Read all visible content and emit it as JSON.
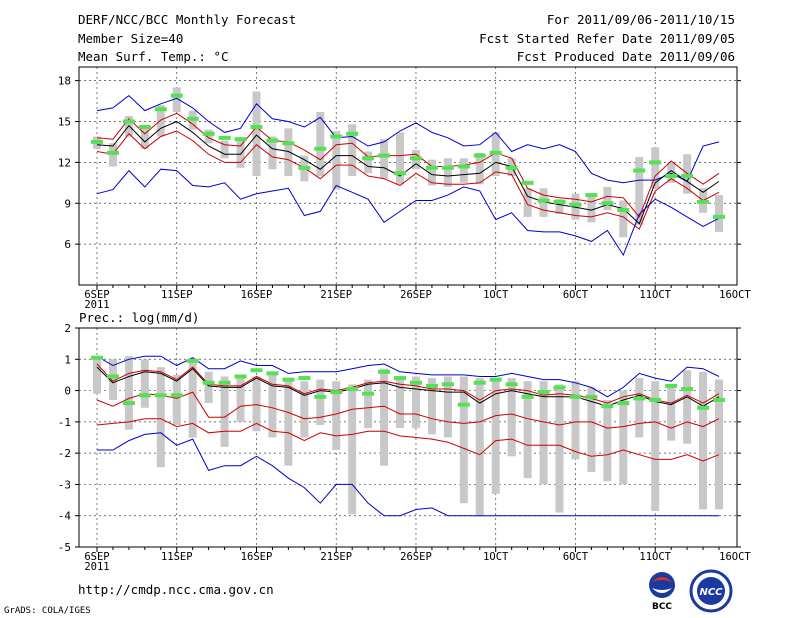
{
  "header": {
    "title": "DERF/NCC/BCC Monthly Forecast",
    "member_size": "Member Size=40",
    "variable": "Mean Surf. Temp.: °C",
    "period": "For 2011/09/06-2011/10/15",
    "fcst_started": "Fcst Started Refer Date 2011/09/05",
    "fcst_produced": "Fcst Produced Date 2011/09/06"
  },
  "footer": {
    "url": "http://cmdp.ncc.cma.gov.cn",
    "grads": "GrADS: COLA/IGES"
  },
  "logos": {
    "left": "BCC",
    "right": "NCC"
  },
  "colors": {
    "envelope": "#0000cc",
    "spread": "#cc0000",
    "mean": "#000000",
    "analog": "#55e055",
    "bar": "#c8c8c8",
    "grid": "#444444"
  },
  "chart_data": [
    {
      "type": "line",
      "title": "Mean Surf. Temp.: °C",
      "xlabel": "",
      "ylabel": "",
      "x_tick_labels": [
        "6SEP\n2011",
        "11SEP",
        "16SEP",
        "21SEP",
        "26SEP",
        "1OCT",
        "6OCT",
        "11OCT",
        "16OCT"
      ],
      "x_range": [
        1,
        40
      ],
      "ylim": [
        3,
        19
      ],
      "yticks": [
        6,
        9,
        12,
        15,
        18
      ],
      "grid": true,
      "series": [
        {
          "name": "max",
          "color": "blue",
          "values": [
            15.8,
            16.0,
            16.9,
            15.8,
            16.3,
            16.7,
            16.0,
            15.0,
            14.2,
            14.5,
            16.3,
            15.2,
            15.0,
            14.6,
            15.3,
            13.8,
            13.9,
            13.2,
            13.5,
            14.3,
            14.9,
            14.2,
            13.8,
            13.2,
            13.3,
            14.2,
            12.8,
            13.3,
            13.0,
            13.3,
            12.8,
            11.2,
            10.7,
            10.5,
            10.7,
            10.7,
            11.2,
            10.6,
            13.2,
            13.5
          ]
        },
        {
          "name": "upper",
          "color": "red",
          "values": [
            13.8,
            13.7,
            15.2,
            14.1,
            15.1,
            15.6,
            14.8,
            13.8,
            13.3,
            13.2,
            14.6,
            13.6,
            13.5,
            12.9,
            12.2,
            13.3,
            13.4,
            12.4,
            12.5,
            12.5,
            12.6,
            11.7,
            11.7,
            11.8,
            12.0,
            12.7,
            12.3,
            10.1,
            9.6,
            9.4,
            9.3,
            9.1,
            9.5,
            9.4,
            8.0,
            11.0,
            12.1,
            11.2,
            10.4,
            11.2
          ]
        },
        {
          "name": "mean",
          "color": "black",
          "values": [
            13.3,
            13.2,
            14.7,
            13.5,
            14.5,
            15.0,
            14.2,
            13.2,
            12.6,
            12.6,
            14.0,
            13.0,
            12.8,
            12.2,
            11.5,
            12.5,
            12.5,
            11.7,
            11.6,
            11.0,
            11.9,
            11.1,
            11.0,
            11.1,
            11.2,
            12.0,
            11.7,
            9.5,
            9.1,
            8.9,
            8.7,
            8.5,
            8.9,
            8.6,
            7.5,
            10.5,
            11.4,
            10.6,
            9.8,
            10.6
          ]
        },
        {
          "name": "lower",
          "color": "red",
          "values": [
            12.8,
            12.6,
            14.1,
            13.0,
            13.9,
            14.3,
            13.6,
            12.6,
            12.0,
            12.0,
            13.3,
            12.4,
            12.2,
            11.6,
            10.8,
            11.8,
            11.8,
            11.0,
            10.8,
            10.3,
            11.2,
            10.5,
            10.4,
            10.4,
            10.5,
            11.3,
            11.1,
            8.9,
            8.5,
            8.3,
            8.1,
            8.0,
            8.3,
            8.0,
            7.1,
            9.9,
            10.8,
            10.1,
            9.2,
            9.8
          ]
        },
        {
          "name": "min",
          "color": "blue",
          "values": [
            9.7,
            10.0,
            11.4,
            10.2,
            11.5,
            11.4,
            10.3,
            10.2,
            10.5,
            9.3,
            9.7,
            9.9,
            10.1,
            8.1,
            8.4,
            10.3,
            9.8,
            9.3,
            7.6,
            8.4,
            9.2,
            9.2,
            9.6,
            10.2,
            9.9,
            7.8,
            8.3,
            7.0,
            6.9,
            6.9,
            6.6,
            6.2,
            7.0,
            5.2,
            8.2,
            9.3,
            8.7,
            8.0,
            7.3,
            7.9
          ]
        },
        {
          "name": "analog",
          "color": "green",
          "values": [
            13.5,
            12.7,
            15.0,
            14.6,
            15.9,
            16.9,
            15.2,
            14.1,
            13.8,
            13.7,
            14.6,
            13.6,
            13.4,
            11.6,
            13.0,
            13.9,
            14.1,
            12.3,
            12.5,
            11.2,
            12.3,
            11.6,
            11.6,
            11.7,
            12.5,
            12.7,
            11.6,
            10.5,
            9.2,
            9.1,
            8.9,
            9.6,
            9.0,
            8.5,
            11.4,
            12.0,
            11.0,
            11.0,
            9.1,
            8.0
          ]
        }
      ],
      "bars": {
        "name": "ensemble range",
        "low": [
          13.0,
          11.7,
          13.9,
          13.0,
          13.9,
          15.7,
          14.4,
          13.4,
          12.3,
          11.6,
          11.0,
          11.5,
          11.0,
          10.6,
          11.0,
          10.0,
          11.0,
          11.2,
          10.8,
          10.4,
          11.5,
          10.3,
          10.2,
          10.5,
          10.4,
          11.0,
          11.0,
          8.0,
          8.0,
          8.2,
          7.8,
          7.6,
          8.5,
          6.5,
          7.4,
          10.1,
          10.5,
          9.7,
          8.3,
          6.9
        ],
        "high": [
          13.9,
          13.4,
          15.4,
          14.7,
          16.2,
          17.5,
          15.8,
          14.4,
          13.6,
          13.8,
          17.2,
          13.9,
          14.5,
          12.5,
          15.7,
          14.3,
          14.8,
          12.8,
          13.7,
          14.2,
          12.9,
          12.2,
          12.3,
          12.3,
          12.7,
          14.2,
          12.3,
          10.1,
          10.1,
          9.3,
          9.7,
          9.7,
          10.2,
          9.2,
          12.4,
          13.1,
          12.0,
          12.6,
          10.1,
          9.6
        ]
      }
    },
    {
      "type": "line",
      "title": "Prec.: log(mm/d)",
      "xlabel": "",
      "ylabel": "",
      "x_tick_labels": [
        "6SEP\n2011",
        "11SEP",
        "16SEP",
        "21SEP",
        "26SEP",
        "1OCT",
        "6OCT",
        "11OCT",
        "16OCT"
      ],
      "x_range": [
        1,
        40
      ],
      "ylim": [
        -5,
        2
      ],
      "yticks": [
        -5,
        -4,
        -3,
        -2,
        -1,
        0,
        1,
        2
      ],
      "grid": true,
      "series": [
        {
          "name": "max",
          "color": "blue",
          "values": [
            1.1,
            0.8,
            1.0,
            1.1,
            1.1,
            0.8,
            1.05,
            0.7,
            0.7,
            0.95,
            0.8,
            0.8,
            0.55,
            0.6,
            0.6,
            0.6,
            0.7,
            0.8,
            0.85,
            0.6,
            0.55,
            0.5,
            0.5,
            0.5,
            0.45,
            0.45,
            0.55,
            0.45,
            0.35,
            0.35,
            0.25,
            0.1,
            -0.2,
            0.1,
            0.55,
            0.4,
            0.3,
            0.75,
            0.7,
            0.45
          ]
        },
        {
          "name": "upper",
          "color": "red",
          "values": [
            0.85,
            0.3,
            0.55,
            0.65,
            0.6,
            0.35,
            0.75,
            0.2,
            0.15,
            0.15,
            0.45,
            0.2,
            0.15,
            -0.1,
            0.05,
            0.0,
            0.1,
            0.25,
            0.3,
            0.2,
            0.15,
            0.05,
            0.05,
            0.0,
            -0.3,
            0.0,
            0.05,
            0.0,
            -0.15,
            -0.1,
            -0.15,
            -0.25,
            -0.4,
            -0.2,
            -0.1,
            -0.3,
            -0.4,
            -0.15,
            -0.4,
            -0.1
          ]
        },
        {
          "name": "mean",
          "color": "black",
          "values": [
            0.75,
            0.25,
            0.45,
            0.6,
            0.55,
            0.3,
            0.7,
            0.15,
            0.1,
            0.1,
            0.4,
            0.15,
            0.1,
            -0.15,
            0.0,
            -0.05,
            0.05,
            0.2,
            0.25,
            0.1,
            0.05,
            0.0,
            -0.05,
            -0.05,
            -0.4,
            -0.1,
            0.0,
            -0.1,
            -0.2,
            -0.2,
            -0.2,
            -0.35,
            -0.5,
            -0.3,
            -0.15,
            -0.35,
            -0.45,
            -0.2,
            -0.5,
            -0.2
          ]
        },
        {
          "name": "lower",
          "color": "red",
          "values": [
            -0.3,
            -0.5,
            -0.25,
            -0.1,
            -0.15,
            -0.25,
            -0.05,
            -0.85,
            -0.85,
            -0.5,
            -0.45,
            -0.55,
            -0.7,
            -0.9,
            -0.85,
            -0.75,
            -0.6,
            -0.55,
            -0.5,
            -0.75,
            -0.75,
            -0.9,
            -1.0,
            -1.05,
            -1.0,
            -0.8,
            -0.75,
            -0.9,
            -1.0,
            -1.1,
            -1.0,
            -1.0,
            -1.2,
            -1.15,
            -1.05,
            -1.0,
            -1.2,
            -1.0,
            -1.15,
            -0.9
          ]
        },
        {
          "name": "min",
          "color": "blue",
          "values": [
            -1.9,
            -1.9,
            -1.6,
            -1.4,
            -1.35,
            -1.75,
            -1.55,
            -2.55,
            -2.4,
            -2.4,
            -2.1,
            -2.4,
            -2.8,
            -3.1,
            -3.6,
            -3.0,
            -3.0,
            -3.6,
            -4.0,
            -4.0,
            -3.8,
            -3.75,
            -4.0,
            -4.0,
            -4.0,
            -4.0,
            -4.0,
            -4.0,
            -4.0,
            -4.0,
            -4.0,
            -4.0,
            -4.0,
            -4.0,
            -4.0,
            -4.0,
            -4.0,
            -4.0,
            -4.0,
            -4.0
          ]
        },
        {
          "name": "lower2",
          "color": "red",
          "values": [
            -1.1,
            -1.05,
            -1.0,
            -0.9,
            -0.9,
            -1.15,
            -1.05,
            -1.35,
            -1.3,
            -1.3,
            -1.05,
            -1.3,
            -1.35,
            -1.6,
            -1.35,
            -1.45,
            -1.4,
            -1.3,
            -1.3,
            -1.45,
            -1.5,
            -1.55,
            -1.65,
            -1.85,
            -2.05,
            -1.6,
            -1.55,
            -1.75,
            -1.75,
            -1.75,
            -1.95,
            -2.1,
            -2.05,
            -1.9,
            -2.05,
            -2.2,
            -2.2,
            -2.05,
            -2.25,
            -2.05
          ]
        },
        {
          "name": "analog",
          "color": "green",
          "values": [
            1.05,
            0.45,
            -0.4,
            -0.15,
            -0.15,
            -0.15,
            0.95,
            0.25,
            0.25,
            0.45,
            0.65,
            0.55,
            0.35,
            0.4,
            -0.2,
            -0.05,
            0.05,
            -0.1,
            0.6,
            0.4,
            0.25,
            0.15,
            0.2,
            -0.45,
            0.25,
            0.35,
            0.2,
            -0.2,
            -0.05,
            0.1,
            -0.2,
            -0.2,
            -0.5,
            -0.4,
            -0.25,
            -0.3,
            0.15,
            0.05,
            -0.55,
            -0.3
          ]
        }
      ],
      "bars": {
        "name": "ensemble range",
        "low": [
          -0.1,
          -0.3,
          -1.25,
          -0.55,
          -2.45,
          -1.1,
          -1.5,
          -0.4,
          -1.8,
          -1.0,
          -1.3,
          -1.5,
          -2.4,
          -1.5,
          -1.1,
          -1.9,
          -3.95,
          -1.2,
          -2.4,
          -1.2,
          -1.2,
          -1.4,
          -1.5,
          -3.6,
          -4.0,
          -3.3,
          -2.1,
          -2.8,
          -3.0,
          -3.9,
          -2.2,
          -2.6,
          -2.9,
          -3.0,
          -1.5,
          -3.85,
          -1.6,
          -1.7,
          -3.8,
          -3.8
        ],
        "high": [
          1.1,
          1.0,
          1.1,
          1.0,
          0.75,
          0.5,
          1.0,
          0.6,
          0.45,
          0.4,
          0.45,
          0.55,
          0.4,
          0.3,
          0.35,
          0.3,
          0.2,
          0.35,
          0.7,
          0.4,
          0.45,
          0.4,
          0.45,
          0.45,
          0.4,
          0.35,
          0.4,
          0.3,
          0.3,
          0.2,
          0.3,
          0.1,
          -0.3,
          0.0,
          0.4,
          0.3,
          0.2,
          0.65,
          0.6,
          0.35
        ]
      }
    }
  ]
}
